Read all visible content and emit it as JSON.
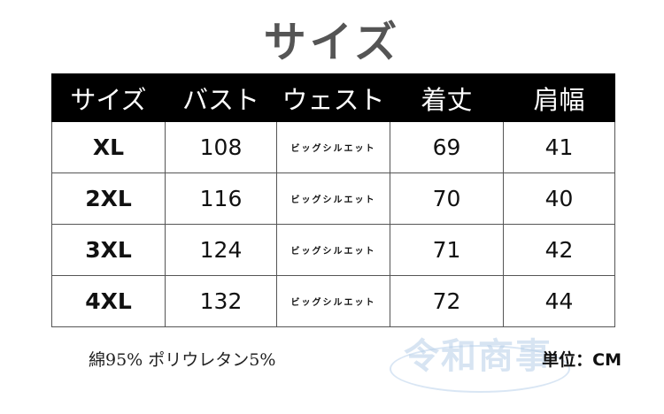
{
  "title": "サイズ",
  "table": {
    "headers": [
      "サイズ",
      "バスト",
      "ウェスト",
      "着丈",
      "肩幅"
    ],
    "rows": [
      {
        "size": "XL",
        "bust": "108",
        "waist": "ビッグシルエット",
        "length": "69",
        "shoulder": "41"
      },
      {
        "size": "2XL",
        "bust": "116",
        "waist": "ビッグシルエット",
        "length": "70",
        "shoulder": "40"
      },
      {
        "size": "3XL",
        "bust": "124",
        "waist": "ビッグシルエット",
        "length": "71",
        "shoulder": "42"
      },
      {
        "size": "4XL",
        "bust": "132",
        "waist": "ビッグシルエット",
        "length": "72",
        "shoulder": "44"
      }
    ]
  },
  "material": "綿95%  ポリウレタン5%",
  "unit": "単位：CM",
  "watermark": "令和商事"
}
